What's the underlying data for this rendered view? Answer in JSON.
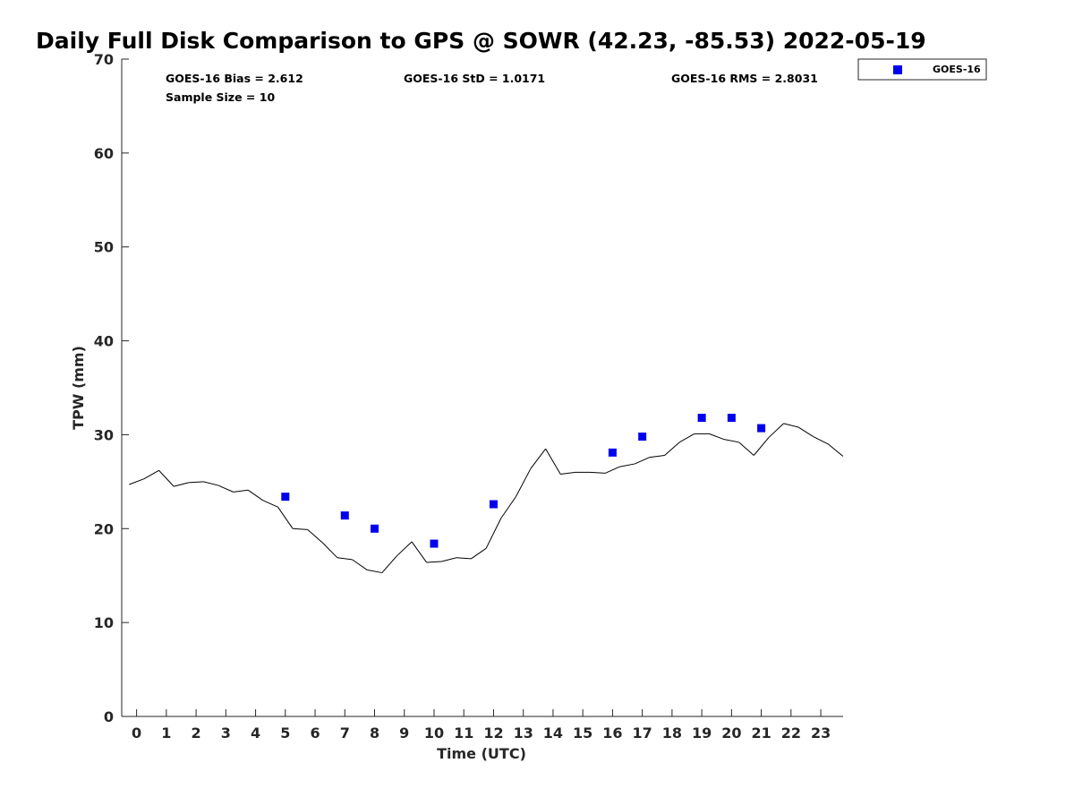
{
  "chart_data": {
    "type": "scatter",
    "title": "Daily Full Disk Comparison to GPS @ SOWR (42.23, -85.53) 2022-05-19",
    "xlabel": "Time (UTC)",
    "ylabel": "TPW (mm)",
    "xlim": [
      -0.5,
      23.75
    ],
    "ylim": [
      0,
      70
    ],
    "x_ticks": [
      0,
      1,
      2,
      3,
      4,
      5,
      6,
      7,
      8,
      9,
      10,
      11,
      12,
      13,
      14,
      15,
      16,
      17,
      18,
      19,
      20,
      21,
      22,
      23
    ],
    "y_ticks": [
      0,
      10,
      20,
      30,
      40,
      50,
      60,
      70
    ],
    "grid": false,
    "legend_position": "top-right, outside plot",
    "stats": {
      "bias": "GOES-16 Bias = 2.612",
      "std": "GOES-16 StD = 1.0171",
      "rms": "GOES-16 RMS = 2.8031",
      "sample": "Sample Size = 10"
    },
    "series": [
      {
        "name": "GOES-16",
        "kind": "scatter",
        "marker": "square",
        "color": "#0000ee",
        "x": [
          5,
          7,
          8,
          10,
          12,
          16,
          17,
          19,
          20,
          21
        ],
        "y": [
          23.4,
          21.4,
          20.0,
          18.4,
          22.6,
          28.1,
          29.8,
          31.8,
          31.8,
          30.7
        ]
      },
      {
        "kind": "line",
        "color": "#000000",
        "x": [
          -0.25,
          0.25,
          0.75,
          1.25,
          1.75,
          2.25,
          2.75,
          3.25,
          3.75,
          4.25,
          4.75,
          5.25,
          5.75,
          6.25,
          6.75,
          7.25,
          7.75,
          8.25,
          8.75,
          9.25,
          9.75,
          10.25,
          10.75,
          11.25,
          11.75,
          12.25,
          12.75,
          13.25,
          13.75,
          14.25,
          14.75,
          15.25,
          15.75,
          16.25,
          16.75,
          17.25,
          17.75,
          18.25,
          18.75,
          19.25,
          19.75,
          20.25,
          20.75,
          21.25,
          21.75,
          22.25,
          22.75,
          23.25,
          23.75
        ],
        "y": [
          24.7,
          25.3,
          26.2,
          24.5,
          24.9,
          25.0,
          24.6,
          23.9,
          24.1,
          23.0,
          22.3,
          20.0,
          19.9,
          18.5,
          16.9,
          16.7,
          15.6,
          15.3,
          17.1,
          18.6,
          16.4,
          16.5,
          16.9,
          16.8,
          17.9,
          21.1,
          23.4,
          26.4,
          28.5,
          25.8,
          26.0,
          26.0,
          25.9,
          26.6,
          26.9,
          27.6,
          27.8,
          29.2,
          30.1,
          30.1,
          29.5,
          29.2,
          27.8,
          29.7,
          31.2,
          30.8,
          29.8,
          29.0,
          27.7
        ]
      }
    ]
  },
  "legend": {
    "label": "GOES-16"
  }
}
